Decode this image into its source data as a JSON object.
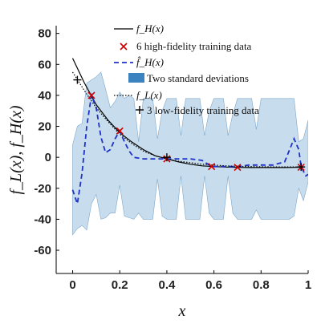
{
  "chart_data": {
    "type": "line",
    "xlabel": "x",
    "ylabel": "f_L(x), f_H(x)",
    "xlim": [
      -0.07,
      1.0
    ],
    "ylim": [
      -75,
      85
    ],
    "x_ticks": [
      0,
      0.2,
      0.4,
      0.6,
      0.8,
      1
    ],
    "x_tick_labels": [
      "0",
      "0.2",
      "0.4",
      "0.6",
      "0.8",
      "1"
    ],
    "y_ticks": [
      -60,
      -40,
      -20,
      0,
      20,
      40,
      60,
      80
    ],
    "y_tick_labels": [
      "-60",
      "-40",
      "-20",
      "0",
      "20",
      "40",
      "60",
      "80"
    ],
    "grid": false,
    "legend_position": "top-right",
    "legend": [
      "f_H(x)",
      "6 high-fidelity training data",
      "f̂_H(x)",
      "Two standard deviations",
      "f_L(x)",
      "3 low-fidelity training data"
    ],
    "colors": {
      "high_fidelity_true": "#000000",
      "high_fidelity_points": "#cc0000",
      "prediction": "#1f32c8",
      "band": "#b4d2e8",
      "legend_band_swatch": "#3b83c0",
      "low_fidelity": "#000000",
      "low_fidelity_points": "#000000"
    },
    "series": [
      {
        "name": "f_H(x)",
        "style": "solid",
        "x": [
          0,
          0.05,
          0.1,
          0.15,
          0.2,
          0.25,
          0.3,
          0.35,
          0.4,
          0.45,
          0.5,
          0.55,
          0.6,
          0.65,
          0.7,
          0.75,
          0.8,
          0.85,
          0.9,
          0.95,
          0.98
        ],
        "y": [
          64,
          48,
          34,
          24,
          16,
          10,
          5,
          1,
          -1,
          -3,
          -4.5,
          -5.5,
          -6,
          -6.3,
          -6.5,
          -6.6,
          -6.6,
          -6.6,
          -6.6,
          -6.5,
          -6.4
        ]
      },
      {
        "name": "f̂_H(x)",
        "style": "dashed",
        "x": [
          0,
          0.02,
          0.04,
          0.06,
          0.08,
          0.1,
          0.12,
          0.14,
          0.16,
          0.18,
          0.2,
          0.22,
          0.24,
          0.26,
          0.3,
          0.34,
          0.38,
          0.4,
          0.45,
          0.5,
          0.55,
          0.59,
          0.63,
          0.67,
          0.7,
          0.75,
          0.8,
          0.85,
          0.9,
          0.94,
          0.96,
          0.97,
          0.98,
          0.99,
          1.0
        ],
        "y": [
          -21,
          -30,
          -10,
          20,
          40,
          32,
          13,
          3,
          5,
          12,
          17,
          10,
          4,
          0,
          -1,
          -1,
          -1,
          -1,
          -1,
          -1,
          -2,
          -6,
          -6,
          -6,
          -6,
          -5,
          -5,
          -5,
          -3,
          12,
          5,
          -6,
          -9,
          -12,
          -11
        ]
      },
      {
        "name": "f_L(x)",
        "style": "dotted",
        "x": [
          0,
          0.05,
          0.1,
          0.15,
          0.2,
          0.25,
          0.3,
          0.35,
          0.4,
          0.45,
          0.5,
          0.55,
          0.6,
          0.65,
          0.7,
          0.75,
          0.8,
          0.85,
          0.9,
          0.95,
          0.98
        ],
        "y": [
          55,
          43,
          32,
          23,
          15,
          9,
          4,
          1,
          -1,
          -2.5,
          -3.5,
          -4.5,
          -5,
          -5.5,
          -5.8,
          -6,
          -6.1,
          -6.2,
          -6.2,
          -6.2,
          -6.2
        ]
      }
    ],
    "band": {
      "name": "Two standard deviations",
      "x": [
        0,
        0.02,
        0.04,
        0.06,
        0.08,
        0.1,
        0.12,
        0.14,
        0.16,
        0.18,
        0.2,
        0.22,
        0.24,
        0.26,
        0.28,
        0.3,
        0.32,
        0.34,
        0.36,
        0.38,
        0.4,
        0.42,
        0.44,
        0.46,
        0.48,
        0.5,
        0.52,
        0.54,
        0.56,
        0.58,
        0.6,
        0.62,
        0.64,
        0.66,
        0.68,
        0.7,
        0.72,
        0.74,
        0.76,
        0.78,
        0.8,
        0.82,
        0.84,
        0.86,
        0.88,
        0.9,
        0.92,
        0.94,
        0.96,
        0.98,
        1.0
      ],
      "upper": [
        8,
        20,
        22,
        48,
        50,
        52,
        55,
        44,
        32,
        36,
        42,
        38,
        40,
        38,
        10,
        38,
        38,
        38,
        12,
        30,
        38,
        38,
        38,
        14,
        38,
        38,
        38,
        38,
        14,
        30,
        38,
        38,
        38,
        14,
        28,
        38,
        38,
        38,
        38,
        18,
        38,
        38,
        38,
        38,
        38,
        38,
        38,
        38,
        10,
        12,
        24
      ],
      "lower": [
        -50,
        -46,
        -44,
        -47,
        -30,
        -24,
        -40,
        -39,
        -36,
        -36,
        -18,
        -38,
        -39,
        -40,
        -36,
        -40,
        -40,
        -40,
        -14,
        -38,
        -40,
        -40,
        -40,
        -12,
        -40,
        -40,
        -40,
        -40,
        -12,
        -36,
        -40,
        -40,
        -40,
        -12,
        -36,
        -40,
        -40,
        -40,
        -40,
        -34,
        -40,
        -40,
        -40,
        -40,
        -40,
        -40,
        -40,
        -38,
        -20,
        -28,
        -16
      ]
    },
    "points": [
      {
        "name": "6 high-fidelity training data",
        "marker": "x",
        "x": [
          0.08,
          0.2,
          0.4,
          0.59,
          0.7,
          0.97
        ],
        "y": [
          40,
          17,
          -1,
          -6,
          -6.5,
          -6.4
        ]
      },
      {
        "name": "3 low-fidelity training data",
        "marker": "+",
        "x": [
          0.02,
          0.4,
          0.97
        ],
        "y": [
          50,
          0,
          -6.2
        ]
      }
    ]
  }
}
